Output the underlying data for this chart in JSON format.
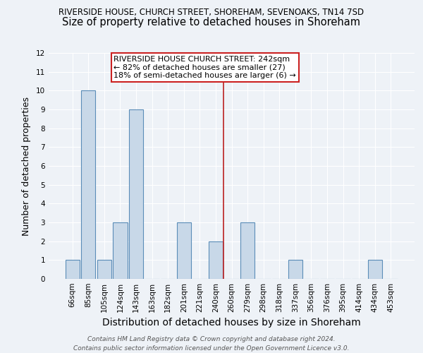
{
  "title1": "RIVERSIDE HOUSE, CHURCH STREET, SHOREHAM, SEVENOAKS, TN14 7SD",
  "title2": "Size of property relative to detached houses in Shoreham",
  "xlabel": "Distribution of detached houses by size in Shoreham",
  "ylabel": "Number of detached properties",
  "categories": [
    "66sqm",
    "85sqm",
    "105sqm",
    "124sqm",
    "143sqm",
    "163sqm",
    "182sqm",
    "201sqm",
    "221sqm",
    "240sqm",
    "260sqm",
    "279sqm",
    "298sqm",
    "318sqm",
    "337sqm",
    "356sqm",
    "376sqm",
    "395sqm",
    "414sqm",
    "434sqm",
    "453sqm"
  ],
  "values": [
    1,
    10,
    1,
    3,
    9,
    0,
    0,
    3,
    0,
    2,
    0,
    3,
    0,
    0,
    1,
    0,
    0,
    0,
    0,
    1,
    0
  ],
  "bar_color": "#c8d8e8",
  "bar_edge_color": "#5b8db8",
  "vline_x": 9.5,
  "vline_color": "#bb2222",
  "ylim": [
    0,
    12
  ],
  "yticks": [
    0,
    1,
    2,
    3,
    4,
    5,
    6,
    7,
    8,
    9,
    10,
    11,
    12
  ],
  "annotation_text": "RIVERSIDE HOUSE CHURCH STREET: 242sqm\n← 82% of detached houses are smaller (27)\n18% of semi-detached houses are larger (6) →",
  "annotation_box_color": "#ffffff",
  "annotation_box_edge": "#cc2222",
  "footer": "Contains HM Land Registry data © Crown copyright and database right 2024.\nContains public sector information licensed under the Open Government Licence v3.0.",
  "background_color": "#eef2f7",
  "grid_color": "#ffffff",
  "title1_fontsize": 8.5,
  "title2_fontsize": 10.5,
  "ylabel_fontsize": 9,
  "xlabel_fontsize": 10,
  "tick_fontsize": 7.5,
  "annotation_fontsize": 8.0,
  "footer_fontsize": 6.5
}
